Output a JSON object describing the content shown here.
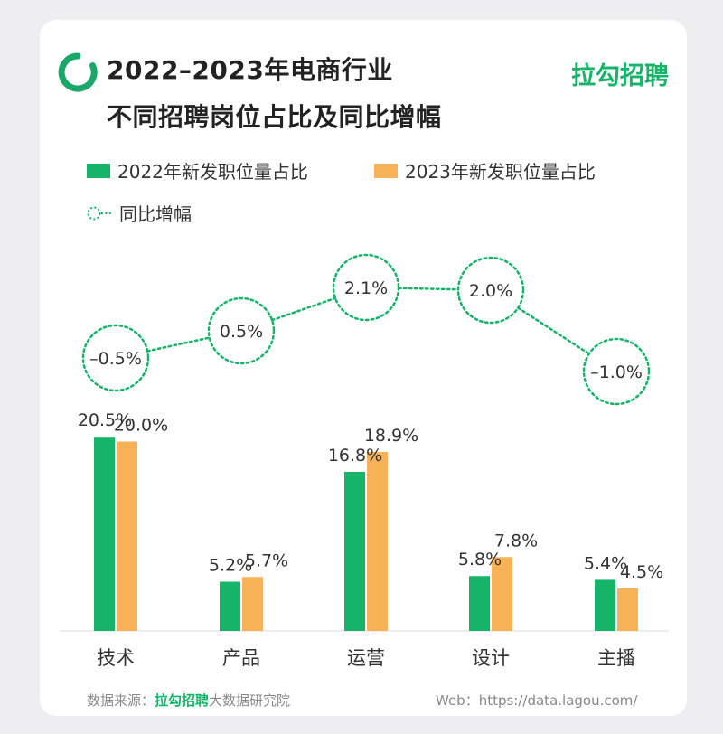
{
  "header": {
    "title_line1": "2022–2023年电商行业",
    "title_line2": "不同招聘岗位占比及同比增幅",
    "brand": "拉勾招聘"
  },
  "colors": {
    "green": "#16b469",
    "orange": "#f7b257",
    "ring": "#1aa86a"
  },
  "legend": {
    "s2022": "2022年新发职位量占比",
    "s2023": "2023年新发职位量占比",
    "growth": "同比增幅"
  },
  "chart_data": {
    "type": "bar",
    "categories": [
      "技术",
      "产品",
      "运营",
      "设计",
      "主播"
    ],
    "series": [
      {
        "name": "2022年新发职位量占比",
        "values": [
          20.5,
          5.2,
          16.8,
          5.8,
          5.4
        ],
        "labels": [
          "20.5%",
          "5.2%",
          "16.8%",
          "5.8%",
          "5.4%"
        ]
      },
      {
        "name": "2023年新发职位量占比",
        "values": [
          20.0,
          5.7,
          18.9,
          7.8,
          4.5
        ],
        "labels": [
          "20.0%",
          "5.7%",
          "18.9%",
          "7.8%",
          "4.5%"
        ]
      }
    ],
    "growth": {
      "name": "同比增幅",
      "values": [
        -0.5,
        0.5,
        2.1,
        2.0,
        -1.0
      ],
      "labels": [
        "–0.5%",
        "0.5%",
        "2.1%",
        "2.0%",
        "–1.0%"
      ]
    },
    "ylim": [
      0,
      21
    ],
    "growth_ylim": [
      -1.0,
      2.1
    ]
  },
  "footer": {
    "source_prefix": "数据来源：",
    "source_brand": "拉勾招聘",
    "source_suffix": "大数据研究院",
    "web": "Web：https://data.lagou.com/"
  }
}
